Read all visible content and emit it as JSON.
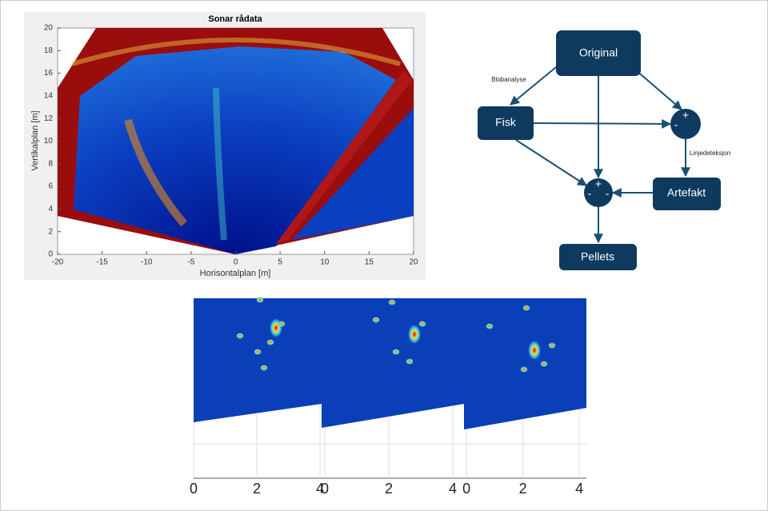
{
  "sonar": {
    "title": "Sonar rådata",
    "xlabel": "Horisontalplan [m]",
    "ylabel": "Vertikalplan [m]",
    "xlim": [
      -20,
      20
    ],
    "ylim": [
      0,
      20
    ],
    "xticks": [
      -20,
      -15,
      -10,
      -5,
      0,
      5,
      10,
      15,
      20
    ],
    "yticks": [
      0,
      2,
      4,
      6,
      8,
      10,
      12,
      14,
      16,
      18,
      20
    ]
  },
  "diagram": {
    "nodes": [
      {
        "label": "Original"
      },
      {
        "label": "Fisk"
      },
      {
        "label": "Artefakt"
      },
      {
        "label": "Pellets"
      }
    ],
    "junctions": [
      {
        "signs": [
          "+",
          "-"
        ]
      },
      {
        "signs": [
          "+",
          "-",
          "-"
        ]
      }
    ],
    "edges": [
      {
        "label": "Blobanalyse"
      },
      {
        "label": "Linjedeteksjon"
      }
    ]
  },
  "panels": [
    {
      "xlim": [
        0,
        4.05
      ],
      "xticks": [
        0,
        2,
        4
      ]
    },
    {
      "xlim": [
        -0.1,
        4.35
      ],
      "xticks": [
        0,
        2,
        4
      ]
    },
    {
      "xlim": [
        -0.09,
        4.25
      ],
      "xticks": [
        0,
        2,
        4
      ]
    }
  ]
}
